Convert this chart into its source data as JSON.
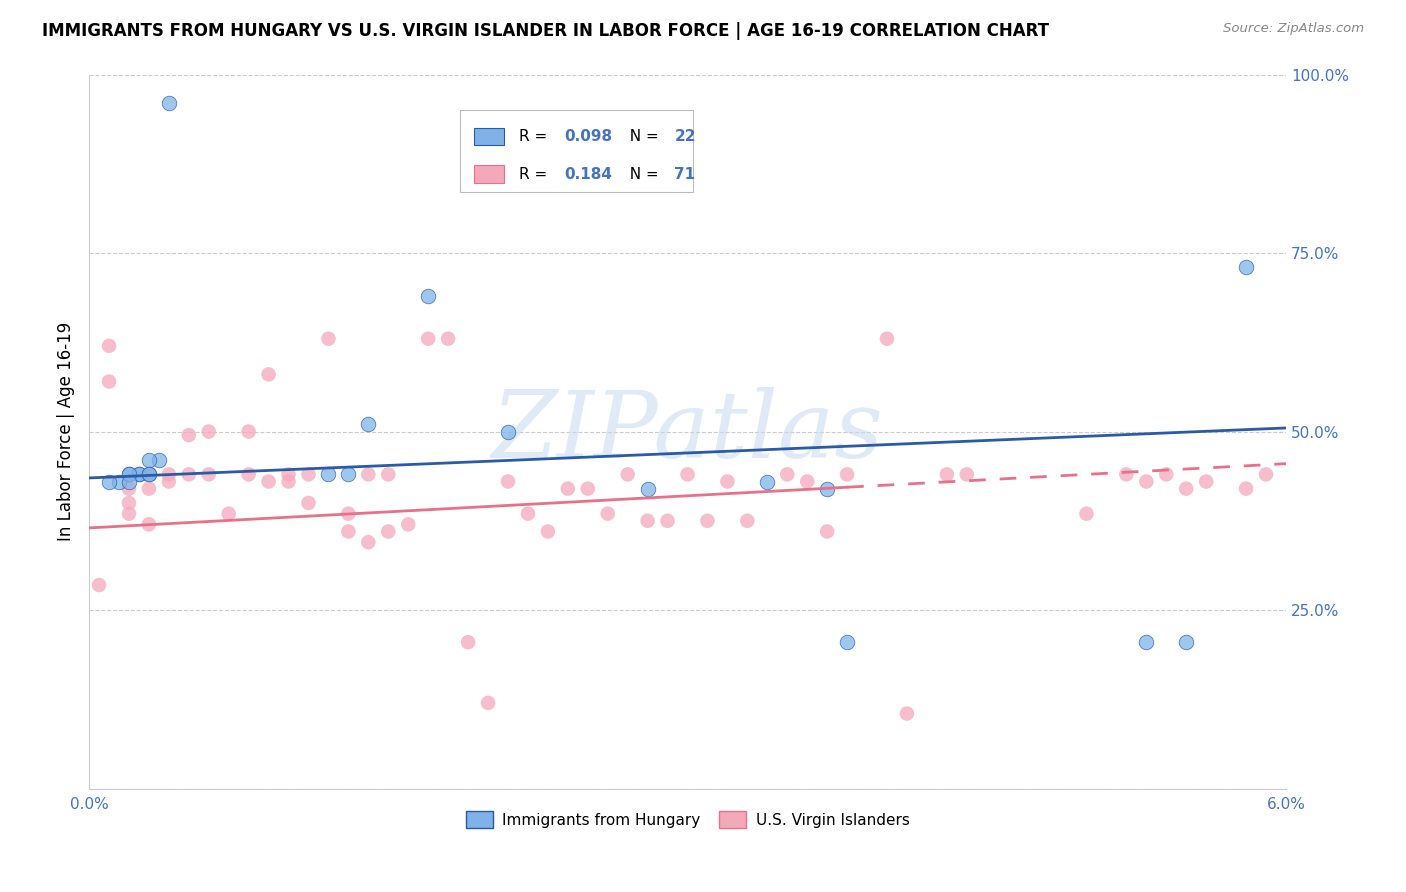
{
  "title": "IMMIGRANTS FROM HUNGARY VS U.S. VIRGIN ISLANDER IN LABOR FORCE | AGE 16-19 CORRELATION CHART",
  "source": "Source: ZipAtlas.com",
  "ylabel": "In Labor Force | Age 16-19",
  "xlim": [
    0.0,
    0.06
  ],
  "ylim": [
    0.0,
    1.0
  ],
  "xticks": [
    0.0,
    0.01,
    0.02,
    0.03,
    0.04,
    0.05,
    0.06
  ],
  "xticklabels": [
    "0.0%",
    "",
    "",
    "",
    "",
    "",
    "6.0%"
  ],
  "yticks_right": [
    0.0,
    0.25,
    0.5,
    0.75,
    1.0
  ],
  "yticklabels_right": [
    "",
    "25.0%",
    "50.0%",
    "75.0%",
    "100.0%"
  ],
  "legend_r1": "0.098",
  "legend_n1": "22",
  "legend_r2": "0.184",
  "legend_n2": "71",
  "color_blue": "#7FB3E8",
  "color_pink": "#F4A9BB",
  "color_blue_line": "#2B5BA8",
  "color_pink_line": "#E8708A",
  "color_tick": "#4472C4",
  "watermark_text": "ZIPatlas",
  "watermark_color": "#C5D9F0",
  "blue_scatter_x": [
    0.0035,
    0.0025,
    0.0015,
    0.002,
    0.003,
    0.0025,
    0.004,
    0.003,
    0.002,
    0.001,
    0.002,
    0.003,
    0.014,
    0.012,
    0.013,
    0.017,
    0.021,
    0.028,
    0.034,
    0.037,
    0.038,
    0.053,
    0.055,
    0.058
  ],
  "blue_scatter_y": [
    0.46,
    0.44,
    0.43,
    0.44,
    0.46,
    0.44,
    0.96,
    0.44,
    0.44,
    0.43,
    0.43,
    0.44,
    0.51,
    0.44,
    0.44,
    0.69,
    0.5,
    0.42,
    0.43,
    0.42,
    0.205,
    0.205,
    0.205,
    0.73
  ],
  "pink_scatter_x": [
    0.0005,
    0.001,
    0.001,
    0.002,
    0.002,
    0.002,
    0.003,
    0.003,
    0.003,
    0.004,
    0.004,
    0.005,
    0.005,
    0.006,
    0.006,
    0.007,
    0.008,
    0.008,
    0.009,
    0.009,
    0.01,
    0.01,
    0.011,
    0.011,
    0.012,
    0.013,
    0.013,
    0.014,
    0.014,
    0.015,
    0.015,
    0.016,
    0.017,
    0.018,
    0.019,
    0.02,
    0.021,
    0.022,
    0.023,
    0.024,
    0.025,
    0.026,
    0.027,
    0.028,
    0.029,
    0.03,
    0.031,
    0.032,
    0.033,
    0.035,
    0.036,
    0.037,
    0.038,
    0.04,
    0.041,
    0.043,
    0.044,
    0.05,
    0.052,
    0.053,
    0.054,
    0.055,
    0.056,
    0.058,
    0.059
  ],
  "pink_scatter_y": [
    0.285,
    0.57,
    0.62,
    0.42,
    0.4,
    0.385,
    0.42,
    0.44,
    0.37,
    0.43,
    0.44,
    0.44,
    0.495,
    0.5,
    0.44,
    0.385,
    0.44,
    0.5,
    0.43,
    0.58,
    0.43,
    0.44,
    0.44,
    0.4,
    0.63,
    0.385,
    0.36,
    0.345,
    0.44,
    0.44,
    0.36,
    0.37,
    0.63,
    0.63,
    0.205,
    0.12,
    0.43,
    0.385,
    0.36,
    0.42,
    0.42,
    0.385,
    0.44,
    0.375,
    0.375,
    0.44,
    0.375,
    0.43,
    0.375,
    0.44,
    0.43,
    0.36,
    0.44,
    0.63,
    0.105,
    0.44,
    0.44,
    0.385,
    0.44,
    0.43,
    0.44,
    0.42,
    0.43,
    0.42,
    0.44
  ],
  "blue_trend_x": [
    0.0,
    0.06
  ],
  "blue_trend_y": [
    0.435,
    0.505
  ],
  "pink_trend_x": [
    0.0,
    0.06
  ],
  "pink_trend_y": [
    0.365,
    0.455
  ],
  "pink_trend_dash_start": 0.038
}
